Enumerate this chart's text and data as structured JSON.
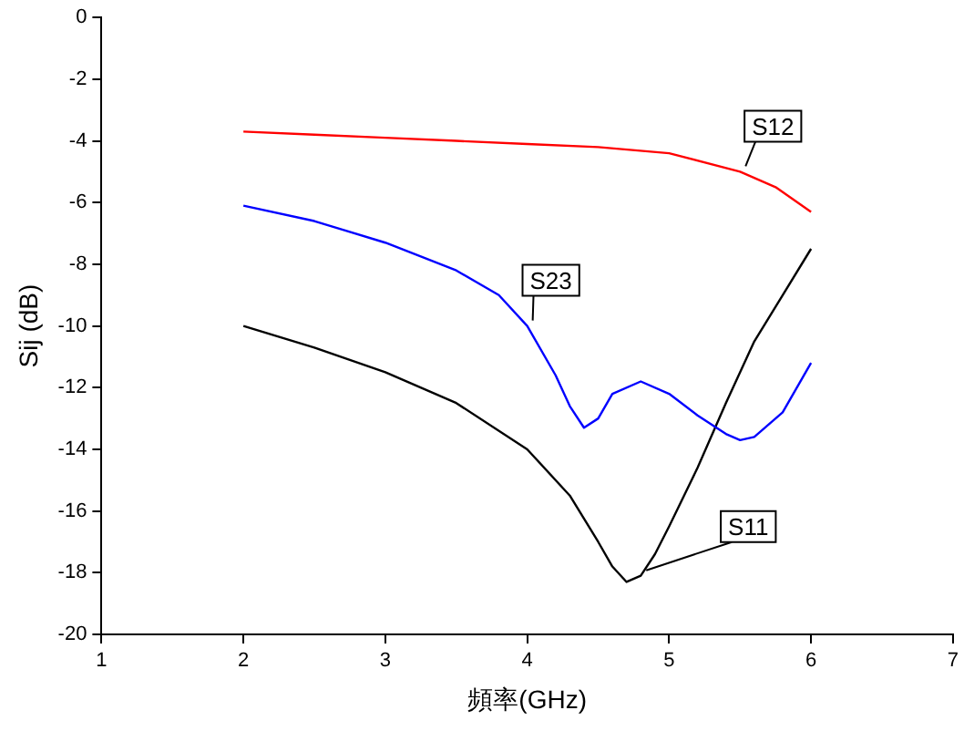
{
  "chart_data": {
    "type": "line",
    "xlabel": "頻率(GHz)",
    "ylabel": "Sij (dB)",
    "xlim": [
      1,
      7
    ],
    "xticks": [
      1,
      2,
      3,
      4,
      5,
      6,
      7
    ],
    "ylim": [
      -20,
      0
    ],
    "yticks": [
      -20,
      -18,
      -16,
      -14,
      -12,
      -10,
      -8,
      -6,
      -4,
      -2,
      0
    ],
    "grid": false,
    "legend": false,
    "marker": "none",
    "line_style": "solid",
    "series": [
      {
        "name": "S12",
        "color": "#ff0000",
        "x": [
          2,
          2.5,
          3,
          3.5,
          4,
          4.5,
          5,
          5.5,
          5.75,
          6
        ],
        "values": [
          -3.7,
          -3.8,
          -3.9,
          -4.0,
          -4.1,
          -4.2,
          -4.4,
          -5.0,
          -5.5,
          -6.3
        ]
      },
      {
        "name": "S23",
        "color": "#0000ff",
        "x": [
          2,
          2.5,
          3,
          3.5,
          3.8,
          4,
          4.2,
          4.3,
          4.4,
          4.5,
          4.6,
          4.8,
          5,
          5.2,
          5.4,
          5.5,
          5.6,
          5.8,
          6
        ],
        "values": [
          -6.1,
          -6.6,
          -7.3,
          -8.2,
          -9.0,
          -10.0,
          -11.6,
          -12.6,
          -13.3,
          -13.0,
          -12.2,
          -11.8,
          -12.2,
          -12.9,
          -13.5,
          -13.7,
          -13.6,
          -12.8,
          -11.2
        ]
      },
      {
        "name": "S11",
        "color": "#000000",
        "x": [
          2,
          2.5,
          3,
          3.5,
          4,
          4.3,
          4.5,
          4.6,
          4.7,
          4.8,
          4.9,
          5,
          5.2,
          5.4,
          5.6,
          5.8,
          6
        ],
        "values": [
          -10.0,
          -10.7,
          -11.5,
          -12.5,
          -14.0,
          -15.5,
          -17.0,
          -17.8,
          -18.3,
          -18.1,
          -17.4,
          -16.5,
          -14.6,
          -12.5,
          -10.5,
          -9.0,
          -7.5
        ]
      }
    ]
  }
}
